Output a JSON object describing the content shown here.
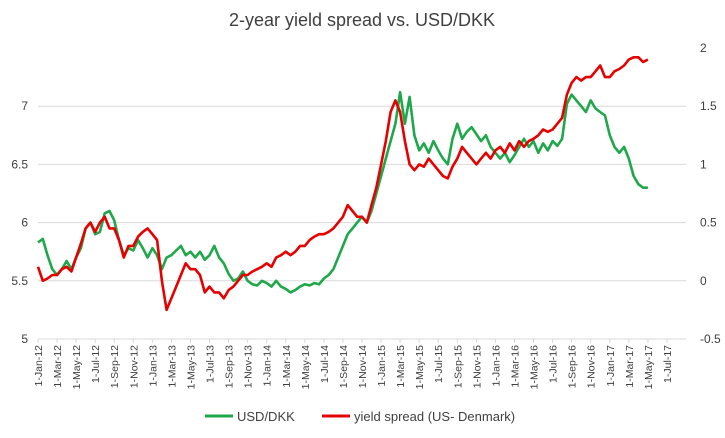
{
  "chart_data": {
    "type": "line",
    "title": "2-year yield spread vs. USD/DKK",
    "y_left": {
      "ticks": [
        5,
        5.5,
        6,
        6.5,
        7
      ],
      "ylim": [
        5,
        7.5
      ]
    },
    "y_right": {
      "ticks": [
        -0.5,
        0,
        0.5,
        1,
        1.5,
        2
      ],
      "ylim": [
        -0.5,
        2
      ]
    },
    "x_labels": [
      "1-Jan-12",
      "1-Mar-12",
      "1-May-12",
      "1-Jul-12",
      "1-Sep-12",
      "1-Nov-12",
      "1-Jan-13",
      "1-Mar-13",
      "1-May-13",
      "1-Jul-13",
      "1-Sep-13",
      "1-Nov-13",
      "1-Jan-14",
      "1-Mar-14",
      "1-May-14",
      "1-Jul-14",
      "1-Sep-14",
      "1-Nov-14",
      "1-Jan-15",
      "1-Mar-15",
      "1-May-15",
      "1-Jul-15",
      "1-Sep-15",
      "1-Nov-15",
      "1-Jan-16",
      "1-Mar-16",
      "1-May-16",
      "1-Jul-16",
      "1-Sep-16",
      "1-Nov-16",
      "1-Jan-17",
      "1-Mar-17",
      "1-May-17",
      "1-Jul-17"
    ],
    "x_range_months": [
      0,
      68
    ],
    "series": [
      {
        "name": "USD/DKK",
        "axis": "left",
        "color": "#1fa84a",
        "points": [
          [
            0,
            5.83
          ],
          [
            0.5,
            5.86
          ],
          [
            1,
            5.72
          ],
          [
            1.5,
            5.6
          ],
          [
            2,
            5.55
          ],
          [
            2.5,
            5.6
          ],
          [
            3,
            5.67
          ],
          [
            3.5,
            5.6
          ],
          [
            4,
            5.7
          ],
          [
            4.5,
            5.78
          ],
          [
            5,
            5.95
          ],
          [
            5.5,
            6.0
          ],
          [
            6,
            5.9
          ],
          [
            6.5,
            5.92
          ],
          [
            7,
            6.08
          ],
          [
            7.5,
            6.1
          ],
          [
            8,
            6.02
          ],
          [
            8.5,
            5.85
          ],
          [
            9,
            5.72
          ],
          [
            9.5,
            5.78
          ],
          [
            10,
            5.76
          ],
          [
            10.5,
            5.85
          ],
          [
            11,
            5.78
          ],
          [
            11.5,
            5.7
          ],
          [
            12,
            5.78
          ],
          [
            12.5,
            5.72
          ],
          [
            13,
            5.6
          ],
          [
            13.5,
            5.7
          ],
          [
            14,
            5.72
          ],
          [
            14.5,
            5.76
          ],
          [
            15,
            5.8
          ],
          [
            15.5,
            5.72
          ],
          [
            16,
            5.75
          ],
          [
            16.5,
            5.7
          ],
          [
            17,
            5.75
          ],
          [
            17.5,
            5.68
          ],
          [
            18,
            5.72
          ],
          [
            18.5,
            5.8
          ],
          [
            19,
            5.7
          ],
          [
            19.5,
            5.65
          ],
          [
            20,
            5.56
          ],
          [
            20.5,
            5.5
          ],
          [
            21,
            5.52
          ],
          [
            21.5,
            5.58
          ],
          [
            22,
            5.5
          ],
          [
            22.5,
            5.47
          ],
          [
            23,
            5.46
          ],
          [
            23.5,
            5.5
          ],
          [
            24,
            5.48
          ],
          [
            24.5,
            5.45
          ],
          [
            25,
            5.5
          ],
          [
            25.5,
            5.45
          ],
          [
            26,
            5.43
          ],
          [
            26.5,
            5.4
          ],
          [
            27,
            5.42
          ],
          [
            27.5,
            5.45
          ],
          [
            28,
            5.47
          ],
          [
            28.5,
            5.46
          ],
          [
            29,
            5.48
          ],
          [
            29.5,
            5.47
          ],
          [
            30,
            5.52
          ],
          [
            30.5,
            5.55
          ],
          [
            31,
            5.6
          ],
          [
            31.5,
            5.7
          ],
          [
            32,
            5.8
          ],
          [
            32.5,
            5.9
          ],
          [
            33,
            5.95
          ],
          [
            33.5,
            6.0
          ],
          [
            34,
            6.05
          ],
          [
            34.5,
            6.0
          ],
          [
            35,
            6.1
          ],
          [
            35.5,
            6.25
          ],
          [
            36,
            6.4
          ],
          [
            36.5,
            6.55
          ],
          [
            37,
            6.7
          ],
          [
            37.5,
            6.85
          ],
          [
            38,
            7.12
          ],
          [
            38.5,
            6.85
          ],
          [
            39,
            7.08
          ],
          [
            39.5,
            6.75
          ],
          [
            40,
            6.62
          ],
          [
            40.5,
            6.68
          ],
          [
            41,
            6.6
          ],
          [
            41.5,
            6.7
          ],
          [
            42,
            6.62
          ],
          [
            42.5,
            6.55
          ],
          [
            43,
            6.5
          ],
          [
            43.5,
            6.72
          ],
          [
            44,
            6.85
          ],
          [
            44.5,
            6.72
          ],
          [
            45,
            6.78
          ],
          [
            45.5,
            6.82
          ],
          [
            46,
            6.76
          ],
          [
            46.5,
            6.7
          ],
          [
            47,
            6.75
          ],
          [
            47.5,
            6.65
          ],
          [
            48,
            6.6
          ],
          [
            48.5,
            6.55
          ],
          [
            49,
            6.6
          ],
          [
            49.5,
            6.52
          ],
          [
            50,
            6.58
          ],
          [
            50.5,
            6.65
          ],
          [
            51,
            6.72
          ],
          [
            51.5,
            6.65
          ],
          [
            52,
            6.7
          ],
          [
            52.5,
            6.6
          ],
          [
            53,
            6.68
          ],
          [
            53.5,
            6.62
          ],
          [
            54,
            6.7
          ],
          [
            54.5,
            6.66
          ],
          [
            55,
            6.72
          ],
          [
            55.5,
            7.02
          ],
          [
            56,
            7.1
          ],
          [
            56.5,
            7.05
          ],
          [
            57,
            7.0
          ],
          [
            57.5,
            6.95
          ],
          [
            58,
            7.05
          ],
          [
            58.5,
            6.98
          ],
          [
            59,
            6.95
          ],
          [
            59.5,
            6.92
          ],
          [
            60,
            6.75
          ],
          [
            60.5,
            6.65
          ],
          [
            61,
            6.6
          ],
          [
            61.5,
            6.65
          ],
          [
            62,
            6.55
          ],
          [
            62.5,
            6.4
          ],
          [
            63,
            6.33
          ],
          [
            63.5,
            6.3
          ],
          [
            64,
            6.3
          ]
        ]
      },
      {
        "name": "yield spread (US- Denmark)",
        "axis": "right",
        "color": "#e60000",
        "points": [
          [
            0,
            0.12
          ],
          [
            0.5,
            0.0
          ],
          [
            1,
            0.02
          ],
          [
            1.5,
            0.05
          ],
          [
            2,
            0.05
          ],
          [
            2.5,
            0.1
          ],
          [
            3,
            0.12
          ],
          [
            3.5,
            0.08
          ],
          [
            4,
            0.2
          ],
          [
            4.5,
            0.32
          ],
          [
            5,
            0.45
          ],
          [
            5.5,
            0.5
          ],
          [
            6,
            0.42
          ],
          [
            6.5,
            0.5
          ],
          [
            7,
            0.55
          ],
          [
            7.5,
            0.45
          ],
          [
            8,
            0.45
          ],
          [
            8.5,
            0.35
          ],
          [
            9,
            0.2
          ],
          [
            9.5,
            0.3
          ],
          [
            10,
            0.3
          ],
          [
            10.5,
            0.38
          ],
          [
            11,
            0.42
          ],
          [
            11.5,
            0.45
          ],
          [
            12,
            0.4
          ],
          [
            12.5,
            0.35
          ],
          [
            13,
            0.0
          ],
          [
            13.5,
            -0.25
          ],
          [
            14,
            -0.15
          ],
          [
            14.5,
            -0.05
          ],
          [
            15,
            0.05
          ],
          [
            15.5,
            0.15
          ],
          [
            16,
            0.1
          ],
          [
            16.5,
            0.1
          ],
          [
            17,
            0.05
          ],
          [
            17.5,
            -0.1
          ],
          [
            18,
            -0.05
          ],
          [
            18.5,
            -0.1
          ],
          [
            19,
            -0.1
          ],
          [
            19.5,
            -0.15
          ],
          [
            20,
            -0.08
          ],
          [
            20.5,
            -0.05
          ],
          [
            21,
            0.0
          ],
          [
            21.5,
            0.05
          ],
          [
            22,
            0.05
          ],
          [
            22.5,
            0.08
          ],
          [
            23,
            0.1
          ],
          [
            23.5,
            0.12
          ],
          [
            24,
            0.15
          ],
          [
            24.5,
            0.12
          ],
          [
            25,
            0.2
          ],
          [
            25.5,
            0.22
          ],
          [
            26,
            0.25
          ],
          [
            26.5,
            0.22
          ],
          [
            27,
            0.25
          ],
          [
            27.5,
            0.3
          ],
          [
            28,
            0.3
          ],
          [
            28.5,
            0.35
          ],
          [
            29,
            0.38
          ],
          [
            29.5,
            0.4
          ],
          [
            30,
            0.4
          ],
          [
            30.5,
            0.42
          ],
          [
            31,
            0.45
          ],
          [
            31.5,
            0.5
          ],
          [
            32,
            0.55
          ],
          [
            32.5,
            0.65
          ],
          [
            33,
            0.6
          ],
          [
            33.5,
            0.55
          ],
          [
            34,
            0.55
          ],
          [
            34.5,
            0.5
          ],
          [
            35,
            0.65
          ],
          [
            35.5,
            0.8
          ],
          [
            36,
            1.0
          ],
          [
            36.5,
            1.2
          ],
          [
            37,
            1.45
          ],
          [
            37.5,
            1.55
          ],
          [
            38,
            1.45
          ],
          [
            38.5,
            1.2
          ],
          [
            39,
            1.0
          ],
          [
            39.5,
            0.95
          ],
          [
            40,
            1.0
          ],
          [
            40.5,
            0.98
          ],
          [
            41,
            1.05
          ],
          [
            41.5,
            1.0
          ],
          [
            42,
            0.95
          ],
          [
            42.5,
            0.9
          ],
          [
            43,
            0.88
          ],
          [
            43.5,
            0.98
          ],
          [
            44,
            1.05
          ],
          [
            44.5,
            1.15
          ],
          [
            45,
            1.1
          ],
          [
            45.5,
            1.05
          ],
          [
            46,
            1.0
          ],
          [
            46.5,
            1.05
          ],
          [
            47,
            1.1
          ],
          [
            47.5,
            1.05
          ],
          [
            48,
            1.12
          ],
          [
            48.5,
            1.15
          ],
          [
            49,
            1.1
          ],
          [
            49.5,
            1.18
          ],
          [
            50,
            1.12
          ],
          [
            50.5,
            1.2
          ],
          [
            51,
            1.15
          ],
          [
            51.5,
            1.2
          ],
          [
            52,
            1.22
          ],
          [
            52.5,
            1.25
          ],
          [
            53,
            1.3
          ],
          [
            53.5,
            1.28
          ],
          [
            54,
            1.3
          ],
          [
            54.5,
            1.35
          ],
          [
            55,
            1.4
          ],
          [
            55.5,
            1.6
          ],
          [
            56,
            1.7
          ],
          [
            56.5,
            1.75
          ],
          [
            57,
            1.72
          ],
          [
            57.5,
            1.75
          ],
          [
            58,
            1.75
          ],
          [
            58.5,
            1.8
          ],
          [
            59,
            1.85
          ],
          [
            59.5,
            1.75
          ],
          [
            60,
            1.75
          ],
          [
            60.5,
            1.8
          ],
          [
            61,
            1.82
          ],
          [
            61.5,
            1.85
          ],
          [
            62,
            1.9
          ],
          [
            62.5,
            1.92
          ],
          [
            63,
            1.92
          ],
          [
            63.5,
            1.88
          ],
          [
            64,
            1.9
          ]
        ]
      }
    ],
    "legend_position": "bottom"
  }
}
